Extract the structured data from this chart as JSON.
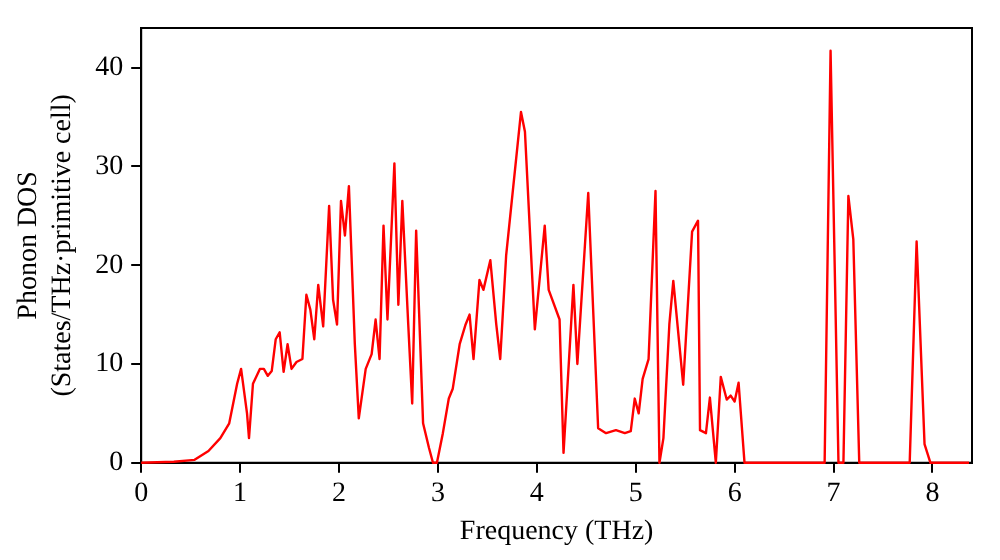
{
  "chart_data": {
    "type": "line",
    "xlabel": "Frequency (THz)",
    "ylabel": "Phonon DOS\n(States/THz·primitive cell)",
    "xlim": [
      0,
      8.4
    ],
    "ylim": [
      0,
      44
    ],
    "xticks": [
      0,
      1,
      2,
      3,
      4,
      5,
      6,
      7,
      8
    ],
    "yticks": [
      0,
      10,
      20,
      30,
      40
    ],
    "marker": "none",
    "line_style": "solid",
    "legend": false,
    "series": [
      {
        "color": "#ff0000",
        "x": [
          0,
          0.33,
          0.54,
          0.68,
          0.8,
          0.89,
          0.97,
          1.01,
          1.07,
          1.09,
          1.13,
          1.2,
          1.24,
          1.28,
          1.32,
          1.36,
          1.4,
          1.44,
          1.48,
          1.52,
          1.57,
          1.63,
          1.67,
          1.71,
          1.75,
          1.79,
          1.84,
          1.9,
          1.94,
          1.98,
          2.02,
          2.06,
          2.1,
          2.16,
          2.2,
          2.27,
          2.33,
          2.37,
          2.41,
          2.45,
          2.49,
          2.56,
          2.6,
          2.64,
          2.7,
          2.74,
          2.78,
          2.85,
          2.91,
          2.95,
          2.99,
          3.05,
          3.11,
          3.15,
          3.22,
          3.28,
          3.32,
          3.36,
          3.42,
          3.46,
          3.53,
          3.59,
          3.63,
          3.69,
          3.84,
          3.88,
          3.98,
          4.08,
          4.12,
          4.23,
          4.27,
          4.37,
          4.41,
          4.52,
          4.62,
          4.7,
          4.8,
          4.89,
          4.95,
          4.99,
          5.03,
          5.07,
          5.13,
          5.2,
          5.24,
          5.28,
          5.34,
          5.38,
          5.48,
          5.57,
          5.63,
          5.65,
          5.71,
          5.75,
          5.81,
          5.86,
          5.92,
          5.96,
          6.0,
          6.04,
          6.1,
          6.91,
          6.97,
          7.05,
          7.1,
          7.15,
          7.2,
          7.26,
          7.77,
          7.84,
          7.92,
          7.98,
          8.37
        ],
        "values": [
          0,
          0.1,
          0.3,
          1.2,
          2.5,
          4,
          8,
          9.5,
          5,
          2.5,
          8,
          9.5,
          9.5,
          8.8,
          9.3,
          12.5,
          13.2,
          9.2,
          12,
          9.5,
          10.2,
          10.5,
          17,
          15.5,
          12.5,
          18,
          13.8,
          26,
          16.5,
          14,
          26.5,
          23,
          28,
          12,
          4.5,
          9.5,
          11,
          14.5,
          10.5,
          24,
          14.5,
          30.3,
          16,
          26.5,
          14,
          6,
          23.5,
          4,
          1.5,
          0,
          0,
          3,
          6.5,
          7.5,
          12,
          14,
          15,
          10.5,
          18.5,
          17.5,
          20.5,
          14,
          10.5,
          21,
          35.5,
          33.5,
          13.5,
          24,
          17.5,
          14.5,
          1,
          18,
          10,
          27.3,
          3.5,
          3,
          3.3,
          3,
          3.2,
          6.5,
          5,
          8.5,
          10.5,
          27.5,
          0,
          2.5,
          14,
          18.4,
          7.9,
          23.4,
          24.5,
          3.3,
          3,
          6.6,
          0,
          8.7,
          6.4,
          6.8,
          6.2,
          8.1,
          0,
          0,
          41.7,
          0,
          0,
          27,
          22.6,
          0,
          0,
          22.4,
          1.9,
          0,
          0
        ]
      }
    ]
  }
}
